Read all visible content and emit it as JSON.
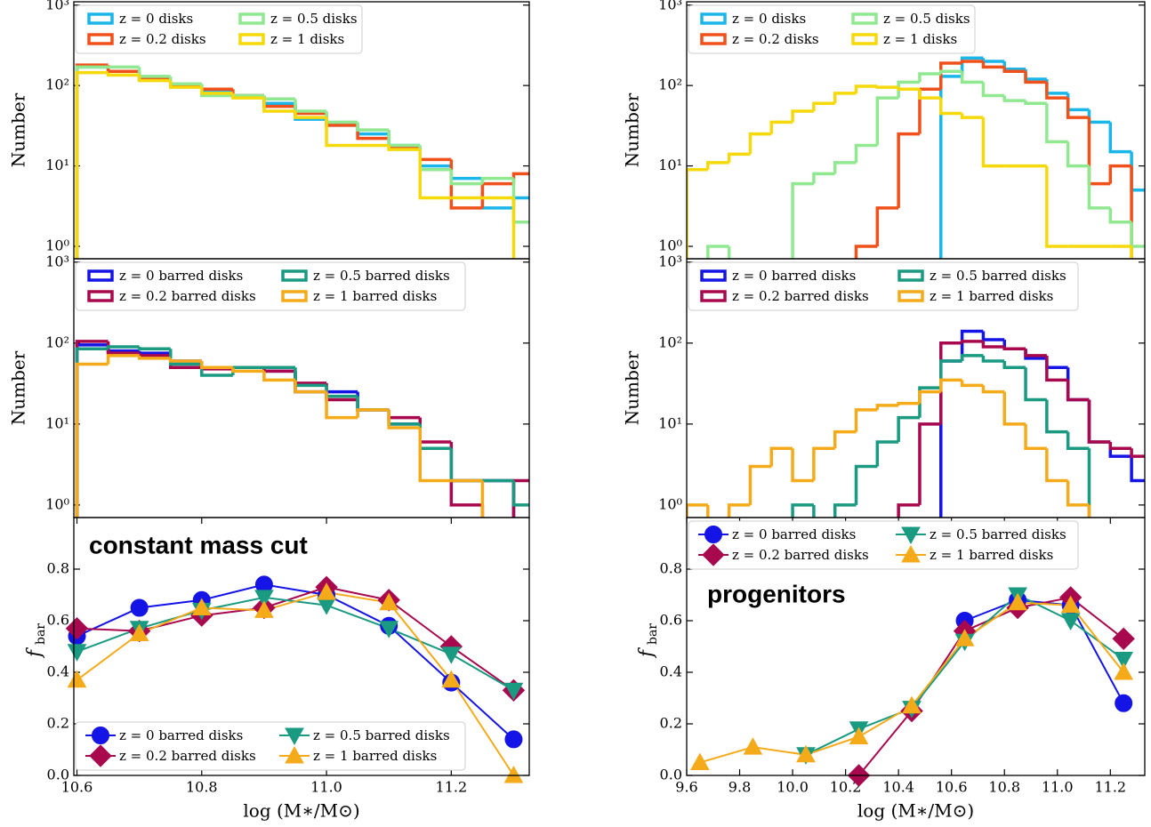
{
  "chart_data": [
    {
      "type": "histogram",
      "ylabel": "Number",
      "log": true,
      "legend": "upper left",
      "xlim": [
        10.595,
        11.325
      ],
      "ylim": [
        0.7,
        1100
      ],
      "yticks": [
        {
          "value": 1,
          "label": "10⁰"
        },
        {
          "value": 10,
          "label": "10¹"
        },
        {
          "value": 100,
          "label": "10²"
        },
        {
          "value": 1000,
          "label": "10³"
        }
      ],
      "bins": [
        10.6,
        10.65,
        10.7,
        10.75,
        10.8,
        10.85,
        10.9,
        10.95,
        11.0,
        11.05,
        11.1,
        11.15,
        11.2,
        11.25,
        11.3,
        11.35
      ],
      "series": [
        {
          "name": "z = 0 disks",
          "color": "#1ab6ea",
          "values": [
            170,
            150,
            120,
            100,
            85,
            75,
            60,
            38,
            32,
            25,
            18,
            10,
            7,
            3,
            4
          ]
        },
        {
          "name": "z = 0.2 disks",
          "color": "#f0501a",
          "values": [
            180,
            150,
            120,
            100,
            90,
            75,
            55,
            45,
            32,
            22,
            17,
            12,
            3,
            6,
            8
          ]
        },
        {
          "name": "z = 0.5 disks",
          "color": "#90e890",
          "values": [
            170,
            170,
            130,
            105,
            75,
            75,
            68,
            48,
            35,
            28,
            18,
            9,
            6,
            7,
            2
          ]
        },
        {
          "name": "z = 1 disks",
          "color": "#f5d90a",
          "values": [
            145,
            135,
            115,
            95,
            80,
            70,
            48,
            40,
            18,
            18,
            16,
            4,
            4,
            4,
            0
          ]
        }
      ]
    },
    {
      "type": "histogram",
      "ylabel": "Number",
      "log": true,
      "legend": "upper left",
      "xlim": [
        10.595,
        11.325
      ],
      "ylim": [
        0.7,
        1100
      ],
      "yticks": [
        {
          "value": 1,
          "label": "10⁰"
        },
        {
          "value": 10,
          "label": "10¹"
        },
        {
          "value": 100,
          "label": "10²"
        },
        {
          "value": 1000,
          "label": "10³"
        }
      ],
      "bins": [
        10.6,
        10.65,
        10.7,
        10.75,
        10.8,
        10.85,
        10.9,
        10.95,
        11.0,
        11.05,
        11.1,
        11.15,
        11.2,
        11.25,
        11.3,
        11.35
      ],
      "series": [
        {
          "name": "z = 0 barred disks",
          "color": "#1414e6",
          "values": [
            95,
            80,
            75,
            60,
            50,
            50,
            45,
            25,
            25,
            15,
            10,
            5,
            2,
            2,
            0
          ]
        },
        {
          "name": "z = 0.2 barred disks",
          "color": "#a8084e",
          "values": [
            105,
            75,
            70,
            50,
            48,
            50,
            45,
            32,
            20,
            15,
            12,
            6,
            1,
            0,
            2
          ]
        },
        {
          "name": "z = 0.5 barred disks",
          "color": "#1a9a80",
          "values": [
            85,
            90,
            85,
            55,
            40,
            50,
            50,
            30,
            22,
            15,
            10,
            5,
            2,
            2,
            1
          ]
        },
        {
          "name": "z = 1 barred disks",
          "color": "#f5aa1a",
          "values": [
            55,
            70,
            65,
            60,
            50,
            45,
            35,
            25,
            12,
            15,
            9,
            2,
            2,
            0,
            0
          ]
        }
      ]
    },
    {
      "type": "line",
      "ylabel": "f",
      "ylabel_sub": "bar",
      "xlabel": "log (M∗/M⊙)",
      "legend": "lower left",
      "annotation": "constant mass cut",
      "xlim": [
        10.595,
        11.325
      ],
      "ylim": [
        0,
        1.0
      ],
      "xticks": [
        10.6,
        10.8,
        {
          "value": 11,
          "label": "11.0"
        },
        11.2
      ],
      "yticks": [
        {
          "value": 0,
          "label": "0.0"
        },
        0.2,
        0.4,
        0.6,
        0.8
      ],
      "x": [
        10.6,
        10.7,
        10.8,
        10.9,
        11.0,
        11.1,
        11.2,
        11.3
      ],
      "series": [
        {
          "name": "z = 0 barred disks",
          "color": "#1414e6",
          "marker": "o",
          "values": [
            0.54,
            0.65,
            0.68,
            0.74,
            0.7,
            0.58,
            0.36,
            0.14
          ]
        },
        {
          "name": "z = 0.2 barred disks",
          "color": "#a8084e",
          "marker": "D",
          "values": [
            0.57,
            0.56,
            0.62,
            0.65,
            0.73,
            0.68,
            0.5,
            0.33
          ]
        },
        {
          "name": "z = 0.5 barred disks",
          "color": "#1a9a80",
          "marker": "v",
          "values": [
            0.48,
            0.57,
            0.64,
            0.69,
            0.66,
            0.57,
            0.47,
            0.33
          ]
        },
        {
          "name": "z = 1 barred disks",
          "color": "#f5aa1a",
          "marker": "^",
          "values": [
            0.37,
            0.55,
            0.65,
            0.64,
            0.71,
            0.67,
            0.37,
            0.0
          ]
        }
      ]
    },
    {
      "type": "histogram",
      "ylabel": "Number",
      "log": true,
      "legend": "upper left",
      "xlim": [
        9.6,
        11.33
      ],
      "ylim": [
        0.7,
        1100
      ],
      "yticks": [
        {
          "value": 1,
          "label": "10⁰"
        },
        {
          "value": 10,
          "label": "10¹"
        },
        {
          "value": 100,
          "label": "10²"
        },
        {
          "value": 1000,
          "label": "10³"
        }
      ],
      "bins": [
        9.6,
        9.68,
        9.76,
        9.84,
        9.92,
        10.0,
        10.08,
        10.16,
        10.24,
        10.32,
        10.4,
        10.48,
        10.56,
        10.64,
        10.72,
        10.8,
        10.88,
        10.96,
        11.04,
        11.12,
        11.2,
        11.28,
        11.36
      ],
      "series": [
        {
          "name": "z = 0 disks",
          "color": "#1ab6ea",
          "values": [
            0,
            0,
            0,
            0,
            0,
            0,
            0,
            0,
            0,
            0,
            0,
            0,
            130,
            220,
            200,
            160,
            120,
            80,
            50,
            35,
            15,
            5
          ]
        },
        {
          "name": "z = 0.2 disks",
          "color": "#f0501a",
          "values": [
            0,
            0,
            0,
            0,
            0,
            0,
            0,
            0,
            1,
            3,
            25,
            90,
            190,
            200,
            170,
            150,
            110,
            70,
            40,
            6,
            10,
            0
          ]
        },
        {
          "name": "z = 0.5 disks",
          "color": "#90e890",
          "values": [
            0,
            1,
            0,
            0,
            0,
            6,
            8,
            11,
            18,
            70,
            110,
            140,
            150,
            110,
            75,
            65,
            60,
            20,
            10,
            3,
            2,
            1
          ]
        },
        {
          "name": "z = 1 disks",
          "color": "#f5d90a",
          "values": [
            9,
            11,
            14,
            25,
            35,
            48,
            60,
            80,
            98,
            95,
            90,
            70,
            45,
            40,
            10,
            10,
            10,
            1,
            1,
            1,
            1,
            0
          ]
        }
      ]
    },
    {
      "type": "histogram",
      "ylabel": "Number",
      "log": true,
      "legend": "upper left",
      "xlim": [
        9.6,
        11.33
      ],
      "ylim": [
        0.7,
        1100
      ],
      "yticks": [
        {
          "value": 1,
          "label": "10⁰"
        },
        {
          "value": 10,
          "label": "10¹"
        },
        {
          "value": 100,
          "label": "10²"
        },
        {
          "value": 1000,
          "label": "10³"
        }
      ],
      "bins": [
        9.6,
        9.68,
        9.76,
        9.84,
        9.92,
        10.0,
        10.08,
        10.16,
        10.24,
        10.32,
        10.4,
        10.48,
        10.56,
        10.64,
        10.72,
        10.8,
        10.88,
        10.96,
        11.04,
        11.12,
        11.2,
        11.28,
        11.36
      ],
      "series": [
        {
          "name": "z = 0 barred disks",
          "color": "#1414e6",
          "values": [
            0,
            0,
            0,
            0,
            0,
            0,
            0,
            0,
            0,
            0,
            0,
            0,
            60,
            140,
            110,
            85,
            65,
            50,
            20,
            6,
            4,
            2
          ]
        },
        {
          "name": "z = 0.2 barred disks",
          "color": "#a8084e",
          "values": [
            0,
            0,
            0,
            0,
            0,
            0,
            0,
            0,
            0,
            0,
            1,
            10,
            100,
            105,
            90,
            85,
            70,
            35,
            20,
            6,
            5,
            4
          ]
        },
        {
          "name": "z = 0.5 barred disks",
          "color": "#1a9a80",
          "values": [
            0,
            0,
            0,
            0,
            0,
            1,
            0,
            1,
            3,
            6,
            12,
            28,
            60,
            70,
            60,
            50,
            20,
            8,
            5,
            0,
            0,
            0
          ]
        },
        {
          "name": "z = 1 barred disks",
          "color": "#f5aa1a",
          "values": [
            1,
            0,
            1,
            3,
            5,
            2,
            5,
            8,
            15,
            17,
            18,
            25,
            35,
            30,
            25,
            10,
            5,
            2,
            1,
            0,
            0,
            0
          ]
        }
      ]
    },
    {
      "type": "line",
      "ylabel": "f",
      "ylabel_sub": "bar",
      "xlabel": "log (M∗/M⊙)",
      "legend": "upper left",
      "annotation": "progenitors",
      "xlim": [
        9.6,
        11.33
      ],
      "ylim": [
        0,
        1.0
      ],
      "xticks": [
        9.6,
        9.8,
        {
          "value": 10,
          "label": "10.0"
        },
        10.2,
        10.4,
        10.6,
        10.8,
        {
          "value": 11,
          "label": "11.0"
        },
        11.2
      ],
      "yticks": [
        {
          "value": 0,
          "label": "0.0"
        },
        0.2,
        0.4,
        0.6,
        0.8
      ],
      "x": [
        9.65,
        9.85,
        10.05,
        10.25,
        10.45,
        10.65,
        10.85,
        11.05,
        11.25
      ],
      "series": [
        {
          "name": "z = 0 barred disks",
          "color": "#1414e6",
          "marker": "o",
          "values": [
            null,
            null,
            null,
            null,
            null,
            0.6,
            0.68,
            0.66,
            0.28
          ]
        },
        {
          "name": "z = 0.2 barred disks",
          "color": "#a8084e",
          "marker": "D",
          "values": [
            null,
            null,
            null,
            0.0,
            0.25,
            0.56,
            0.65,
            0.69,
            0.53
          ]
        },
        {
          "name": "z = 0.5 barred disks",
          "color": "#1a9a80",
          "marker": "v",
          "values": [
            null,
            null,
            0.08,
            0.18,
            0.26,
            0.52,
            0.7,
            0.6,
            0.45
          ]
        },
        {
          "name": "z = 1 barred disks",
          "color": "#f5aa1a",
          "marker": "^",
          "values": [
            0.05,
            0.11,
            0.08,
            0.15,
            0.27,
            0.53,
            0.67,
            0.66,
            0.4
          ]
        }
      ]
    }
  ]
}
